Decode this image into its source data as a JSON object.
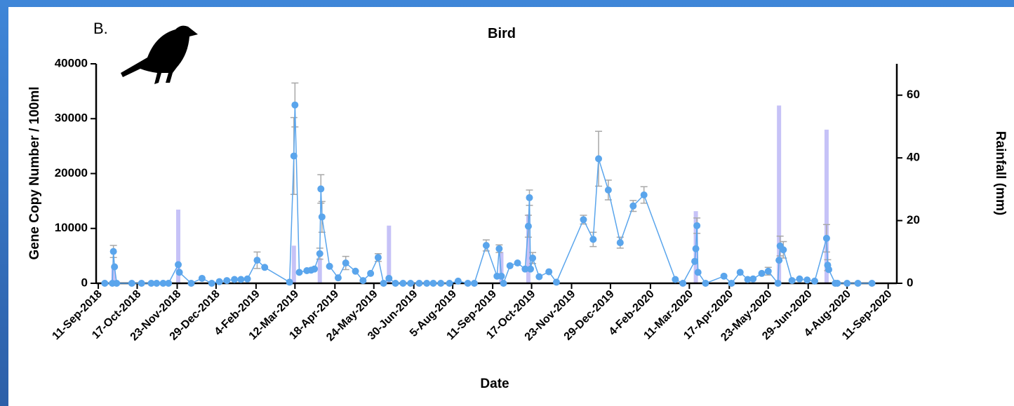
{
  "chart_data": {
    "type": "line",
    "panel_label": "B.",
    "title": "Bird",
    "xlabel": "Date",
    "ylabel": "Gene Copy Number / 100ml",
    "y2label": "Rainfall (mm)",
    "xlim": [
      "2018-09-09",
      "2020-09-19"
    ],
    "xticks": [
      {
        "value": "2018-09-11",
        "label": "11-Sep-2018"
      },
      {
        "value": "2018-10-17",
        "label": "17-Oct-2018"
      },
      {
        "value": "2018-11-23",
        "label": "23-Nov-2018"
      },
      {
        "value": "2018-12-29",
        "label": "29-Dec-2018"
      },
      {
        "value": "2019-02-04",
        "label": "4-Feb-2019"
      },
      {
        "value": "2019-03-12",
        "label": "12-Mar-2019"
      },
      {
        "value": "2019-04-18",
        "label": "18-Apr-2019"
      },
      {
        "value": "2019-05-24",
        "label": "24-May-2019"
      },
      {
        "value": "2019-06-30",
        "label": "30-Jun-2019"
      },
      {
        "value": "2019-08-05",
        "label": "5-Aug-2019"
      },
      {
        "value": "2019-09-11",
        "label": "11-Sep-2019"
      },
      {
        "value": "2019-10-17",
        "label": "17-Oct-2019"
      },
      {
        "value": "2019-11-23",
        "label": "23-Nov-2019"
      },
      {
        "value": "2019-12-29",
        "label": "29-Dec-2019"
      },
      {
        "value": "2020-02-04",
        "label": "4-Feb-2020"
      },
      {
        "value": "2020-03-11",
        "label": "11-Mar-2020"
      },
      {
        "value": "2020-04-17",
        "label": "17-Apr-2020"
      },
      {
        "value": "2020-05-23",
        "label": "23-May-2020"
      },
      {
        "value": "2020-06-29",
        "label": "29-Jun-2020"
      },
      {
        "value": "2020-08-04",
        "label": "4-Aug-2020"
      },
      {
        "value": "2020-09-11",
        "label": "11-Sep-2020"
      }
    ],
    "ylim": [
      0,
      40000
    ],
    "yticks": [
      0,
      10000,
      20000,
      30000,
      40000
    ],
    "y2lim": [
      0,
      70
    ],
    "y2ticks": [
      0,
      20,
      40,
      60
    ],
    "series": [
      {
        "color": "#5aa5ec",
        "x": [
          "2018-09-17",
          "2018-09-24",
          "2018-09-25",
          "2018-09-26",
          "2018-09-28",
          "2018-10-12",
          "2018-10-21",
          "2018-10-30",
          "2018-11-04",
          "2018-11-10",
          "2018-11-15",
          "2018-11-24",
          "2018-11-25",
          "2018-12-06",
          "2018-12-16",
          "2018-12-25",
          "2019-01-01",
          "2019-01-08",
          "2019-01-15",
          "2019-01-21",
          "2019-01-27",
          "2019-02-05",
          "2019-02-12",
          "2019-03-07",
          "2019-03-11",
          "2019-03-12",
          "2019-03-16",
          "2019-03-23",
          "2019-03-27",
          "2019-03-30",
          "2019-04-04",
          "2019-04-05",
          "2019-04-06",
          "2019-04-13",
          "2019-04-21",
          "2019-04-28",
          "2019-05-07",
          "2019-05-14",
          "2019-05-21",
          "2019-05-28",
          "2019-06-02",
          "2019-06-07",
          "2019-06-13",
          "2019-06-20",
          "2019-06-27",
          "2019-07-05",
          "2019-07-12",
          "2019-07-18",
          "2019-07-25",
          "2019-08-02",
          "2019-08-10",
          "2019-08-19",
          "2019-08-25",
          "2019-09-05",
          "2019-09-15",
          "2019-09-17",
          "2019-09-19",
          "2019-09-21",
          "2019-09-27",
          "2019-10-04",
          "2019-10-11",
          "2019-10-14",
          "2019-10-15",
          "2019-10-16",
          "2019-10-18",
          "2019-10-24",
          "2019-11-02",
          "2019-11-09",
          "2019-12-04",
          "2019-12-13",
          "2019-12-18",
          "2019-12-27",
          "2020-01-07",
          "2020-01-19",
          "2020-01-29",
          "2020-02-27",
          "2020-03-05",
          "2020-03-16",
          "2020-03-17",
          "2020-03-18",
          "2020-03-19",
          "2020-03-26",
          "2020-04-12",
          "2020-04-19",
          "2020-04-27",
          "2020-05-04",
          "2020-05-09",
          "2020-05-17",
          "2020-05-23",
          "2020-06-01",
          "2020-06-02",
          "2020-06-03",
          "2020-06-06",
          "2020-06-14",
          "2020-06-21",
          "2020-06-28",
          "2020-07-05",
          "2020-07-16",
          "2020-07-17",
          "2020-07-18",
          "2020-07-24",
          "2020-07-26",
          "2020-08-04",
          "2020-08-14",
          "2020-08-27"
        ],
        "values": [
          0,
          0,
          5800,
          3000,
          0,
          0,
          0,
          0,
          0,
          0,
          0,
          3400,
          2000,
          0,
          900,
          0,
          300,
          500,
          700,
          700,
          800,
          4200,
          2900,
          200,
          23200,
          32500,
          2000,
          2300,
          2400,
          2600,
          5400,
          17200,
          12100,
          3100,
          1000,
          3700,
          2200,
          500,
          1800,
          4700,
          0,
          900,
          0,
          0,
          0,
          0,
          0,
          0,
          0,
          0,
          400,
          0,
          0,
          6900,
          1300,
          6300,
          1300,
          0,
          3200,
          3700,
          2600,
          10400,
          15600,
          2600,
          4600,
          1200,
          2100,
          200,
          11600,
          8000,
          22700,
          17000,
          7400,
          14100,
          16100,
          700,
          0,
          4000,
          6300,
          10500,
          2000,
          0,
          1300,
          0,
          2000,
          700,
          800,
          1800,
          2200,
          0,
          4200,
          6800,
          6100,
          500,
          800,
          600,
          400,
          8200,
          3300,
          2500,
          0,
          0,
          0,
          0,
          0
        ],
        "errors": [
          null,
          null,
          1100,
          null,
          null,
          null,
          null,
          null,
          null,
          null,
          null,
          null,
          null,
          null,
          null,
          null,
          null,
          null,
          null,
          null,
          null,
          1500,
          null,
          null,
          7000,
          4000,
          null,
          null,
          null,
          null,
          1000,
          2600,
          2800,
          null,
          null,
          1200,
          null,
          null,
          null,
          700,
          null,
          null,
          null,
          null,
          null,
          null,
          null,
          null,
          null,
          null,
          null,
          null,
          null,
          1000,
          null,
          700,
          null,
          null,
          null,
          null,
          null,
          2000,
          1400,
          null,
          1000,
          null,
          null,
          null,
          800,
          1300,
          5000,
          1800,
          1000,
          1000,
          1500,
          null,
          null,
          null,
          null,
          1400,
          null,
          null,
          null,
          null,
          null,
          null,
          null,
          null,
          700,
          null,
          null,
          1800,
          1500,
          null,
          null,
          null,
          null,
          2500,
          1000,
          null,
          null,
          null,
          null,
          null,
          null
        ]
      },
      {
        "type": "bar",
        "axis": "y2",
        "color": "#c6c2f7",
        "x": [
          "2018-09-25",
          "2018-11-24",
          "2019-03-11",
          "2019-04-04",
          "2019-06-07",
          "2019-09-19",
          "2019-10-14",
          "2020-03-17",
          "2020-06-02",
          "2020-07-16"
        ],
        "values": [
          5,
          23.5,
          12,
          8,
          18.4,
          10,
          22,
          23,
          56.7,
          49
        ]
      }
    ]
  }
}
